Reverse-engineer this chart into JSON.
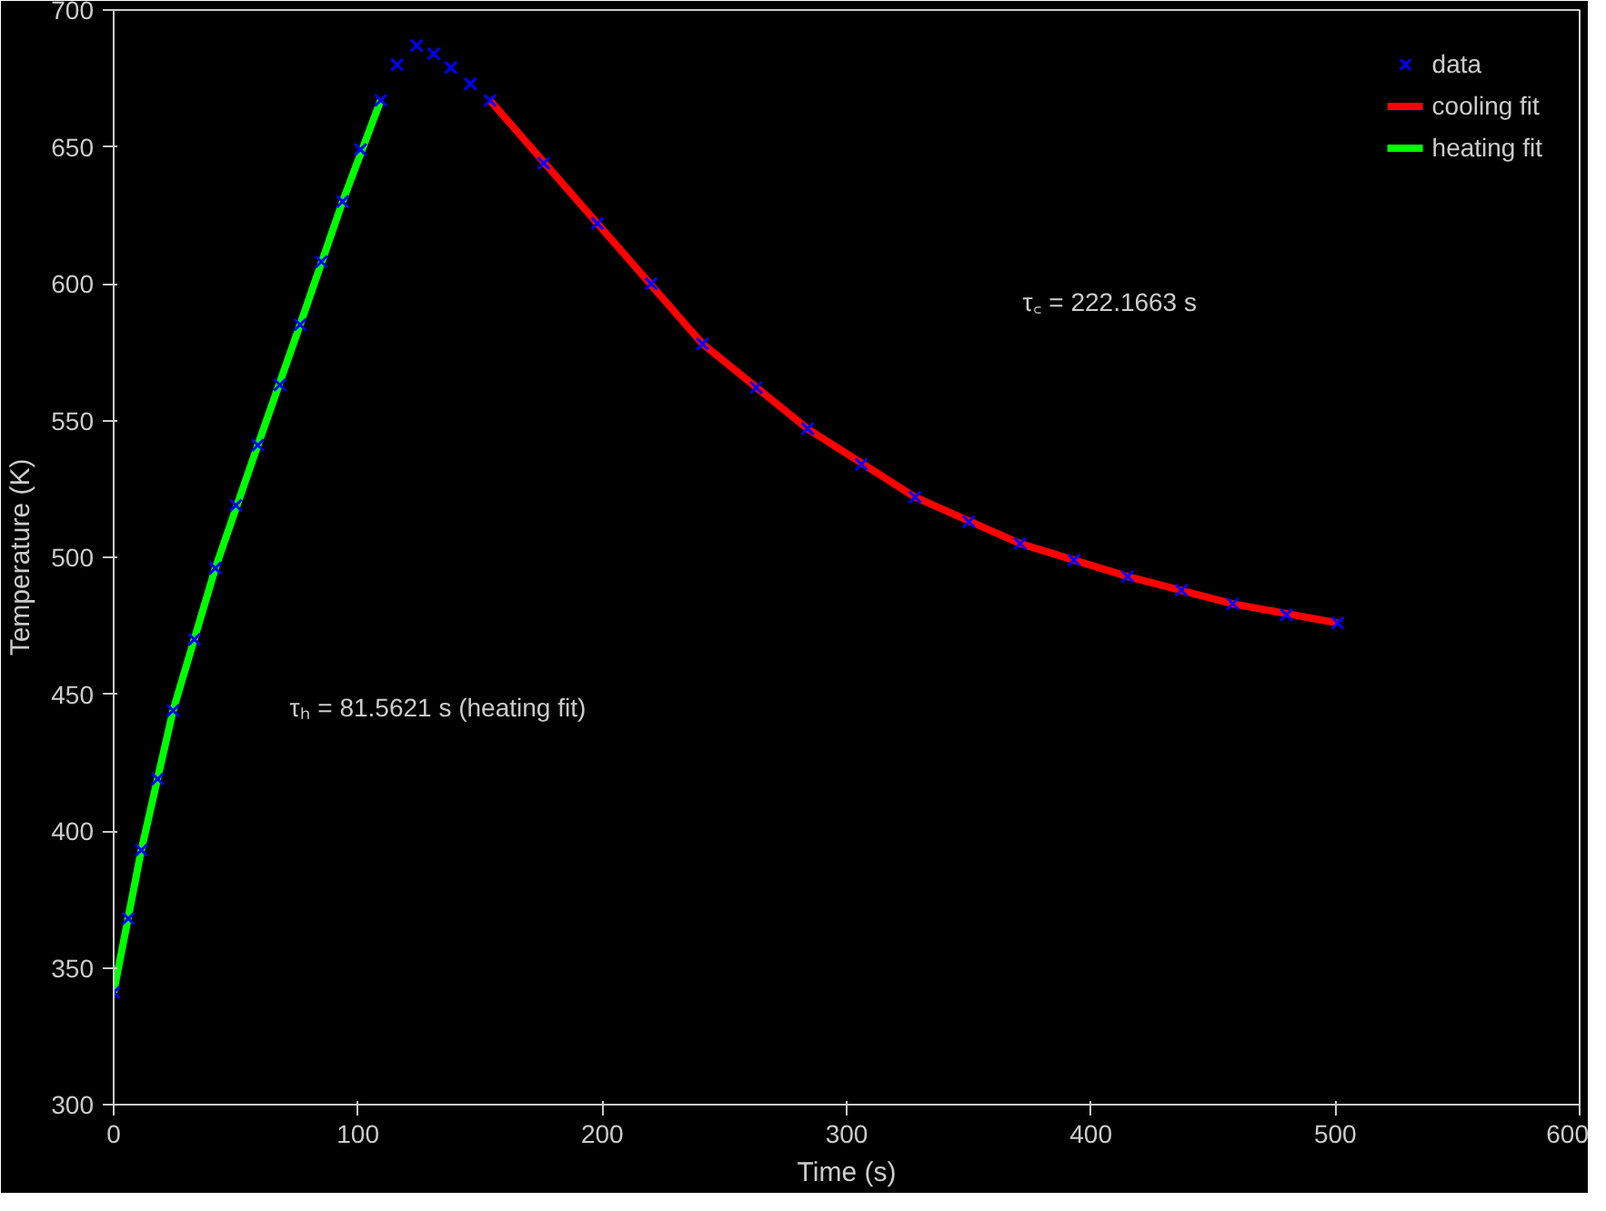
{
  "chart_data": {
    "type": "scatter",
    "xlabel": "Time (s)",
    "ylabel": "Temperature (K)",
    "xlim": [
      0,
      600
    ],
    "xticks": [
      0,
      100,
      200,
      300,
      400,
      500,
      600
    ],
    "ylim": [
      300,
      700
    ],
    "yticks": [
      300,
      350,
      400,
      450,
      500,
      550,
      600,
      650,
      700
    ],
    "legend": "top right",
    "grid": false,
    "series": [
      {
        "name": "data",
        "marker": "cross",
        "color": "#0000ff",
        "x": [
          0,
          6,
          11.3,
          18,
          24.3,
          33,
          41.6,
          50,
          59,
          68,
          76.3,
          85,
          93.7,
          101,
          109.3,
          116,
          124,
          131,
          138,
          146,
          154,
          176,
          198,
          220,
          241,
          263,
          284,
          306,
          328,
          350,
          371,
          393,
          415,
          437,
          458,
          480,
          501
        ],
        "values": [
          341,
          368,
          393,
          419,
          444,
          470,
          496,
          519,
          541,
          563,
          585,
          608,
          630,
          649,
          667,
          680,
          687,
          684,
          679,
          673,
          667,
          644,
          622,
          600,
          578,
          562,
          547,
          534,
          522,
          513,
          505,
          499,
          493,
          488,
          483,
          479,
          476
        ]
      },
      {
        "name": "cooling fit",
        "type": "line",
        "color": "#ff0000",
        "x": [
          154,
          198,
          241,
          284,
          328,
          371,
          415,
          458,
          501
        ],
        "values": [
          667,
          622,
          578,
          547,
          522,
          505,
          493,
          483,
          476
        ]
      },
      {
        "name": "heating fit",
        "type": "line",
        "color": "#00ff00",
        "x": [
          0,
          11.3,
          24.3,
          41.6,
          59,
          76.3,
          93.7,
          109.3
        ],
        "values": [
          341,
          393,
          444,
          496,
          541,
          585,
          630,
          667
        ]
      }
    ],
    "annotations": [
      "τ꜀ = 222.1663 s",
      "τₕ = 81.5621 s (heating fit)"
    ]
  }
}
